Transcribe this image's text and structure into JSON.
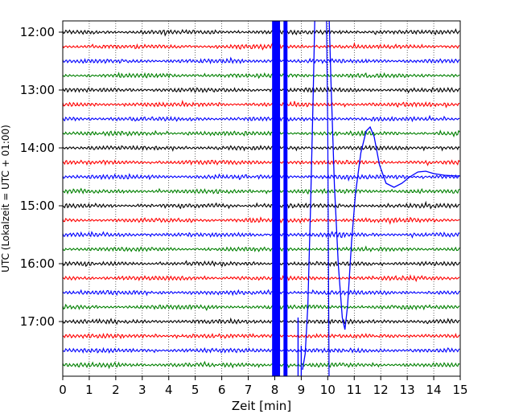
{
  "chart_data": {
    "type": "line",
    "title": "",
    "xlabel": "Zeit  [min]",
    "ylabel": "UTC (Lokalzeit = UTC + 01:00)",
    "xlim": [
      0,
      15
    ],
    "x_ticks": [
      "0",
      "1",
      "2",
      "3",
      "4",
      "5",
      "6",
      "7",
      "8",
      "9",
      "10",
      "11",
      "12",
      "13",
      "14",
      "15"
    ],
    "y_ticks": [
      "12:00",
      "13:00",
      "14:00",
      "15:00",
      "16:00",
      "17:00"
    ],
    "grid": "vertical-dotted",
    "trace_colors": [
      "#000000",
      "#ff0000",
      "#0000ff",
      "#008000"
    ],
    "row_count": 24,
    "events": [
      {
        "row": 0,
        "x_start": 9.3,
        "x_end": 10.2,
        "peak_min": 9.5,
        "description": "large vertical excursion"
      },
      {
        "row": 10,
        "x_start": 7.85,
        "x_end": 8.45,
        "description": "saturated band"
      },
      {
        "row": 10,
        "x_start": 9.3,
        "x_end": 14.9,
        "peak_min": 11.6,
        "description": "long-period wave"
      }
    ],
    "series": [
      {
        "row": 0,
        "time": "12:00",
        "color": "#000000"
      },
      {
        "row": 1,
        "time": "12:15",
        "color": "#ff0000"
      },
      {
        "row": 2,
        "time": "12:30",
        "color": "#0000ff"
      },
      {
        "row": 3,
        "time": "12:45",
        "color": "#008000"
      },
      {
        "row": 4,
        "time": "13:00",
        "color": "#000000"
      },
      {
        "row": 5,
        "time": "13:15",
        "color": "#ff0000"
      },
      {
        "row": 6,
        "time": "13:30",
        "color": "#0000ff"
      },
      {
        "row": 7,
        "time": "13:45",
        "color": "#008000"
      },
      {
        "row": 8,
        "time": "14:00",
        "color": "#000000"
      },
      {
        "row": 9,
        "time": "14:15",
        "color": "#ff0000"
      },
      {
        "row": 10,
        "time": "14:30",
        "color": "#0000ff"
      },
      {
        "row": 11,
        "time": "14:45",
        "color": "#008000"
      },
      {
        "row": 12,
        "time": "15:00",
        "color": "#000000"
      },
      {
        "row": 13,
        "time": "15:15",
        "color": "#ff0000"
      },
      {
        "row": 14,
        "time": "15:30",
        "color": "#0000ff"
      },
      {
        "row": 15,
        "time": "15:45",
        "color": "#008000"
      },
      {
        "row": 16,
        "time": "16:00",
        "color": "#000000"
      },
      {
        "row": 17,
        "time": "16:15",
        "color": "#ff0000"
      },
      {
        "row": 18,
        "time": "16:30",
        "color": "#0000ff"
      },
      {
        "row": 19,
        "time": "16:45",
        "color": "#008000"
      },
      {
        "row": 20,
        "time": "17:00",
        "color": "#000000"
      },
      {
        "row": 21,
        "time": "17:15",
        "color": "#ff0000"
      },
      {
        "row": 22,
        "time": "17:30",
        "color": "#0000ff"
      },
      {
        "row": 23,
        "time": "17:45",
        "color": "#008000"
      }
    ]
  }
}
